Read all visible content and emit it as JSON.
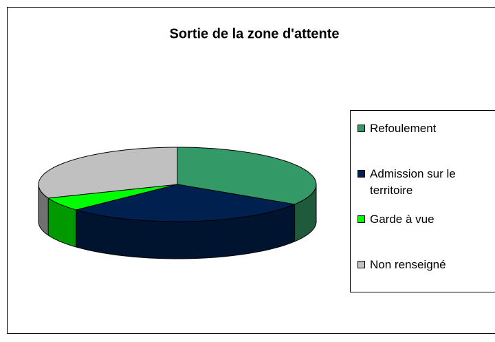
{
  "chart_data": {
    "type": "pie",
    "title": "Sortie de la zone d'attente",
    "categories": [
      "Refoulement",
      "Admission sur le territoire",
      "Garde à vue",
      "Non renseigné"
    ],
    "values": [
      34,
      29,
      6,
      31
    ],
    "colors": [
      "#339966",
      "#002050",
      "#00ff00",
      "#c0c0c0"
    ],
    "side_colors": [
      "#1f5a3c",
      "#001430",
      "#009900",
      "#707070"
    ],
    "legend": "right"
  }
}
